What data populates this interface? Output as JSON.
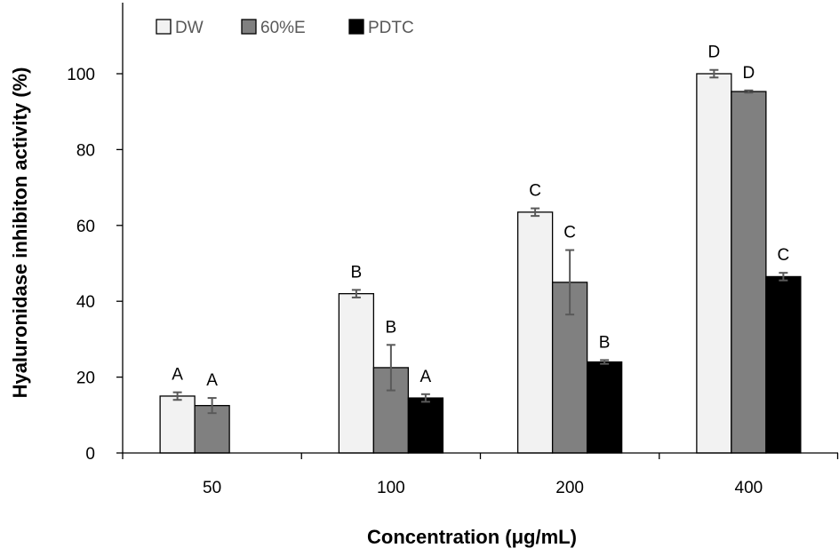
{
  "chart_data": {
    "type": "bar",
    "title": "",
    "xlabel": "Concentration (μg/mL)",
    "ylabel": "Hyaluronidase inhibiton activity (%)",
    "ylim": [
      0,
      120
    ],
    "yticks": [
      0,
      20,
      40,
      60,
      80,
      100
    ],
    "grid": false,
    "legend_position": "top-left",
    "categories": [
      "50",
      "100",
      "200",
      "400"
    ],
    "series": [
      {
        "name": "DW",
        "color": "#f2f2f2",
        "values": [
          15,
          42,
          63.5,
          100
        ],
        "errors": [
          1,
          1,
          1,
          1
        ],
        "labels": [
          "A",
          "B",
          "C",
          "D"
        ]
      },
      {
        "name": "60%E",
        "color": "#808080",
        "values": [
          12.5,
          22.5,
          45,
          95.3
        ],
        "errors": [
          2,
          6,
          8.5,
          0.3
        ],
        "labels": [
          "A",
          "B",
          "C",
          "D"
        ]
      },
      {
        "name": "PDTC",
        "color": "#000000",
        "values": [
          null,
          14.5,
          24,
          46.5
        ],
        "errors": [
          null,
          1,
          0.5,
          1
        ],
        "labels": [
          null,
          "A",
          "B",
          "C"
        ]
      }
    ]
  }
}
